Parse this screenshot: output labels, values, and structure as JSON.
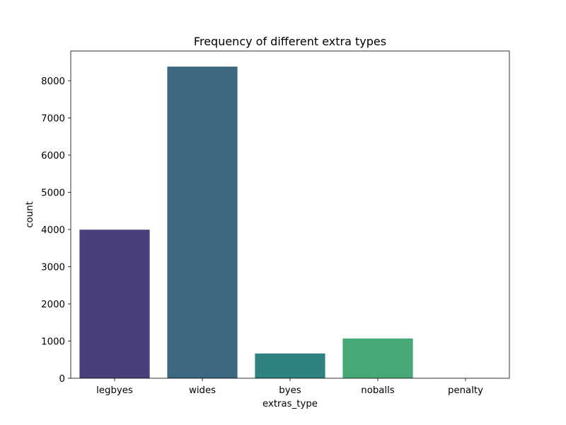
{
  "chart_data": {
    "type": "bar",
    "title": "Frequency of different extra types",
    "xlabel": "extras_type",
    "ylabel": "count",
    "categories": [
      "legbyes",
      "wides",
      "byes",
      "noballs",
      "penalty"
    ],
    "values": [
      3995,
      8380,
      665,
      1070,
      4
    ],
    "colors": [
      "#4a3f7a",
      "#3e6882",
      "#2e8380",
      "#46a877",
      "#b5de2b"
    ],
    "ylim": [
      0,
      8800
    ],
    "yticks": [
      0,
      1000,
      2000,
      3000,
      4000,
      5000,
      6000,
      7000,
      8000
    ],
    "grid": false,
    "legend": "none"
  }
}
